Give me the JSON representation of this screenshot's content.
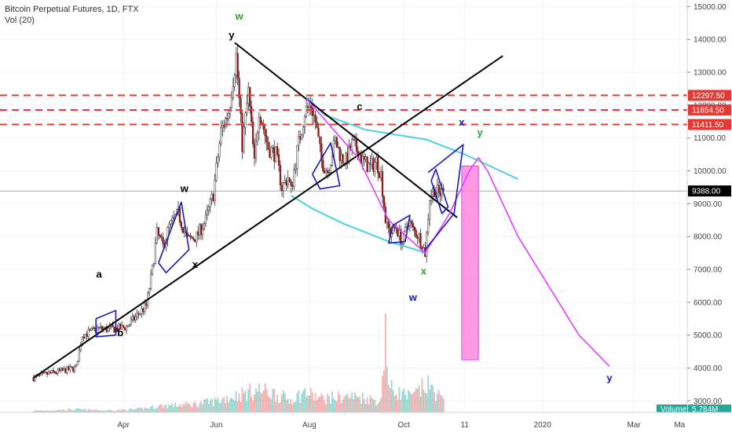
{
  "header": {
    "title": "Bitcoin Perpetual Futures, 1D, FTX",
    "indicator": "Vol (20)"
  },
  "chart_data": {
    "type": "candlestick",
    "y_axis": {
      "ticks": [
        3000,
        4000,
        5000,
        6000,
        7000,
        8000,
        9000,
        10000,
        11000,
        12000,
        13000,
        14000,
        15000
      ],
      "tick_labels": [
        "3000.00",
        "4000.00",
        "5000.00",
        "6000.00",
        "7000.00",
        "8000.00",
        "9000.00",
        "10000.00",
        "11000.00",
        "12000.00",
        "13000.00",
        "14000.00",
        "15000.00"
      ],
      "range": [
        2650,
        15200
      ]
    },
    "x_axis": {
      "labels": [
        {
          "text": "Apr",
          "day": 31
        },
        {
          "text": "Jun",
          "day": 92
        },
        {
          "text": "Aug",
          "day": 153
        },
        {
          "text": "Oct",
          "day": 215
        },
        {
          "text": "11",
          "day": 255
        },
        {
          "text": "2020",
          "day": 306
        },
        {
          "text": "Mar",
          "day": 366
        },
        {
          "text": "Ma",
          "day": 396
        }
      ],
      "range": [
        -50,
        401
      ]
    },
    "price_path": [
      [
        -28,
        3700
      ],
      [
        -18,
        3830
      ],
      [
        -5,
        3950
      ],
      [
        0,
        4020
      ],
      [
        4,
        5000
      ],
      [
        10,
        5100
      ],
      [
        15,
        5200
      ],
      [
        20,
        5180
      ],
      [
        28,
        5200
      ],
      [
        33,
        5250
      ],
      [
        40,
        5600
      ],
      [
        46,
        5900
      ],
      [
        50,
        7000
      ],
      [
        53,
        8100
      ],
      [
        57,
        7700
      ],
      [
        61,
        8300
      ],
      [
        67,
        8700
      ],
      [
        73,
        7900
      ],
      [
        79,
        8000
      ],
      [
        85,
        8500
      ],
      [
        90,
        9300
      ],
      [
        95,
        11200
      ],
      [
        100,
        11800
      ],
      [
        105,
        13500
      ],
      [
        109,
        10800
      ],
      [
        113,
        12400
      ],
      [
        117,
        10200
      ],
      [
        120,
        11900
      ],
      [
        126,
        10700
      ],
      [
        131,
        10500
      ],
      [
        135,
        9500
      ],
      [
        139,
        9800
      ],
      [
        141,
        9400
      ],
      [
        145,
        10600
      ],
      [
        150,
        11800
      ],
      [
        154,
        12000
      ],
      [
        157,
        11500
      ],
      [
        161,
        10300
      ],
      [
        165,
        10000
      ],
      [
        170,
        10900
      ],
      [
        174,
        10400
      ],
      [
        177,
        10300
      ],
      [
        181,
        10800
      ],
      [
        185,
        10600
      ],
      [
        188,
        10300
      ],
      [
        193,
        10100
      ],
      [
        197,
        10300
      ],
      [
        200,
        9900
      ],
      [
        203,
        8500
      ],
      [
        206,
        8100
      ],
      [
        210,
        8300
      ],
      [
        214,
        7800
      ],
      [
        218,
        8500
      ],
      [
        221,
        8200
      ],
      [
        225,
        8000
      ],
      [
        229,
        7500
      ],
      [
        232,
        9200
      ],
      [
        235,
        9450
      ],
      [
        238,
        9300
      ],
      [
        241,
        9388
      ]
    ],
    "volume_path": [
      [
        -28,
        30
      ],
      [
        0,
        60
      ],
      [
        20,
        40
      ],
      [
        40,
        60
      ],
      [
        55,
        130
      ],
      [
        75,
        160
      ],
      [
        90,
        220
      ],
      [
        100,
        300
      ],
      [
        110,
        380
      ],
      [
        120,
        450
      ],
      [
        130,
        380
      ],
      [
        140,
        250
      ],
      [
        150,
        400
      ],
      [
        160,
        280
      ],
      [
        170,
        300
      ],
      [
        180,
        320
      ],
      [
        190,
        300
      ],
      [
        200,
        220
      ],
      [
        203,
        1900
      ],
      [
        205,
        500
      ],
      [
        210,
        420
      ],
      [
        220,
        300
      ],
      [
        230,
        550
      ],
      [
        238,
        350
      ],
      [
        241,
        200
      ]
    ],
    "volume_max": 2100,
    "horizontal_levels": [
      {
        "price": 12297.5,
        "label": "12297.50",
        "color": "#e53935"
      },
      {
        "price": 11854.5,
        "label": "11854.50",
        "color": "#e53935"
      },
      {
        "price": 11411.5,
        "label": "11411.50",
        "color": "#e53935"
      }
    ],
    "current_price": {
      "price": 9388,
      "label": "9388.00"
    },
    "volume_label": "Volume",
    "volume_value": "5.784M",
    "trendlines": [
      {
        "color": "#000000",
        "points": [
          [
            -28,
            3700
          ],
          [
            280,
            13500
          ]
        ]
      },
      {
        "color": "#000000",
        "points": [
          [
            104,
            13900
          ],
          [
            250,
            8580
          ]
        ]
      }
    ],
    "channel_lines": [
      {
        "color": "#4dd0e1",
        "points": [
          [
            151,
            12250
          ],
          [
            163,
            11700
          ],
          [
            190,
            11250
          ],
          [
            230,
            10950
          ],
          [
            255,
            10500
          ],
          [
            290,
            9750
          ]
        ]
      },
      {
        "color": "#4dd0e1",
        "points": [
          [
            141,
            9250
          ],
          [
            155,
            8850
          ],
          [
            175,
            8400
          ],
          [
            205,
            7850
          ],
          [
            230,
            7500
          ]
        ]
      }
    ],
    "projection": {
      "color": "#e040fb",
      "points": [
        [
          151,
          12200
        ],
        [
          185,
          10400
        ],
        [
          205,
          8500
        ],
        [
          229,
          7500
        ],
        [
          245,
          8700
        ],
        [
          258,
          10000
        ],
        [
          264,
          10400
        ],
        [
          270,
          10000
        ],
        [
          290,
          8000
        ],
        [
          310,
          6500
        ],
        [
          330,
          5000
        ],
        [
          350,
          4050
        ]
      ]
    },
    "projection_bar": {
      "color": "#ff80dd",
      "start_day": 253,
      "end_day": 264,
      "top": 10150,
      "bottom": 4250
    },
    "structure_boxes": [
      {
        "points": [
          [
            13,
            5500
          ],
          [
            26,
            5750
          ],
          [
            26,
            5000
          ],
          [
            13,
            4950
          ],
          [
            13,
            5500
          ]
        ]
      },
      {
        "points": [
          [
            54,
            7200
          ],
          [
            69,
            9050
          ],
          [
            74,
            7600
          ],
          [
            59,
            6900
          ],
          [
            54,
            7200
          ]
        ]
      },
      {
        "points": [
          [
            155,
            9900
          ],
          [
            167,
            10850
          ],
          [
            173,
            9550
          ],
          [
            160,
            9450
          ],
          [
            155,
            9900
          ]
        ]
      },
      {
        "points": [
          [
            208,
            8350
          ],
          [
            219,
            8650
          ],
          [
            216,
            7850
          ],
          [
            205,
            7800
          ],
          [
            208,
            8350
          ]
        ]
      },
      {
        "points": [
          [
            233,
            9700
          ],
          [
            236,
            10050
          ],
          [
            244,
            8900
          ],
          [
            240,
            8700
          ],
          [
            233,
            9700
          ]
        ]
      },
      {
        "points": [
          [
            231,
            9950
          ],
          [
            254,
            10800
          ],
          [
            248,
            8700
          ],
          [
            229,
            7600
          ]
        ]
      }
    ],
    "wave_labels": [
      {
        "text": "w",
        "day": 107,
        "price": 14600,
        "color": "#2e9e2e"
      },
      {
        "text": "y",
        "day": 102,
        "price": 14030,
        "color": "#000000"
      },
      {
        "text": "w",
        "day": 71,
        "price": 9350,
        "color": "#000000"
      },
      {
        "text": "x",
        "day": 78,
        "price": 7050,
        "color": "#000000"
      },
      {
        "text": "a",
        "day": 15,
        "price": 6750,
        "color": "#000000"
      },
      {
        "text": "b",
        "day": 29,
        "price": 4970,
        "color": "#000000"
      },
      {
        "text": "c",
        "day": 186,
        "price": 11850,
        "color": "#000000"
      },
      {
        "text": "x",
        "day": 253,
        "price": 11380,
        "color": "#1a1ab3"
      },
      {
        "text": "y",
        "day": 265,
        "price": 11060,
        "color": "#2e9e2e"
      },
      {
        "text": "x",
        "day": 228,
        "price": 6850,
        "color": "#2e9e2e"
      },
      {
        "text": "w",
        "day": 221,
        "price": 6050,
        "color": "#1a1ab3"
      },
      {
        "text": "y",
        "day": 350,
        "price": 3590,
        "color": "#1a1ab3"
      }
    ]
  }
}
